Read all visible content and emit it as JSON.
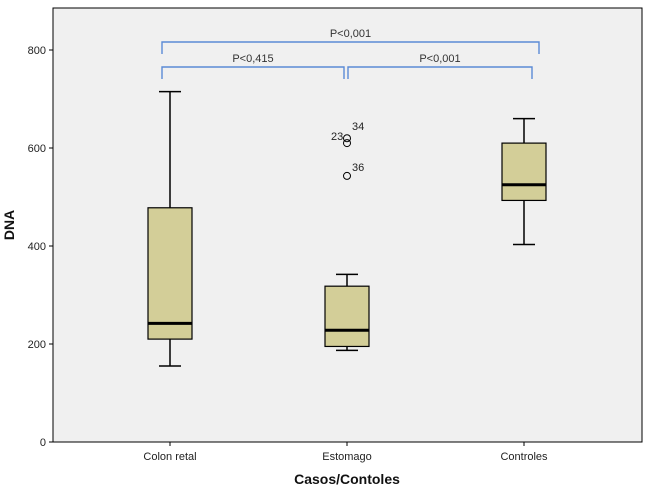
{
  "chart_data": {
    "type": "boxplot",
    "xlabel": "Casos/Contoles",
    "ylabel": "DNA",
    "ylim": [
      0,
      850
    ],
    "yticks": [
      0,
      200,
      400,
      600,
      800
    ],
    "grid": false,
    "colors": {
      "plot_bg": "#f0f0f0",
      "box_fill": "#d3ce98",
      "box_stroke": "#000000",
      "bracket": "#5b8bd6"
    },
    "categories": [
      "Colon retal",
      "Estomago",
      "Controles"
    ],
    "boxes": [
      {
        "category": "Colon retal",
        "whisker_low": 155,
        "q1": 210,
        "median": 242,
        "q3": 478,
        "whisker_high": 715,
        "outliers": []
      },
      {
        "category": "Estomago",
        "whisker_low": 187,
        "q1": 195,
        "median": 228,
        "q3": 318,
        "whisker_high": 342,
        "outliers": [
          {
            "value": 620,
            "label": "23"
          },
          {
            "value": 610,
            "label": "34"
          },
          {
            "value": 543,
            "label": "36"
          }
        ]
      },
      {
        "category": "Controles",
        "whisker_low": 403,
        "q1": 493,
        "median": 525,
        "q3": 610,
        "whisker_high": 660,
        "outliers": []
      }
    ],
    "annotations": [
      {
        "from": "Colon retal",
        "to": "Controles",
        "label": "P<0,001",
        "level": 2
      },
      {
        "from": "Colon retal",
        "to": "Estomago",
        "label": "P<0,415",
        "level": 1
      },
      {
        "from": "Estomago",
        "to": "Controles",
        "label": "P<0,001",
        "level": 1
      }
    ]
  }
}
